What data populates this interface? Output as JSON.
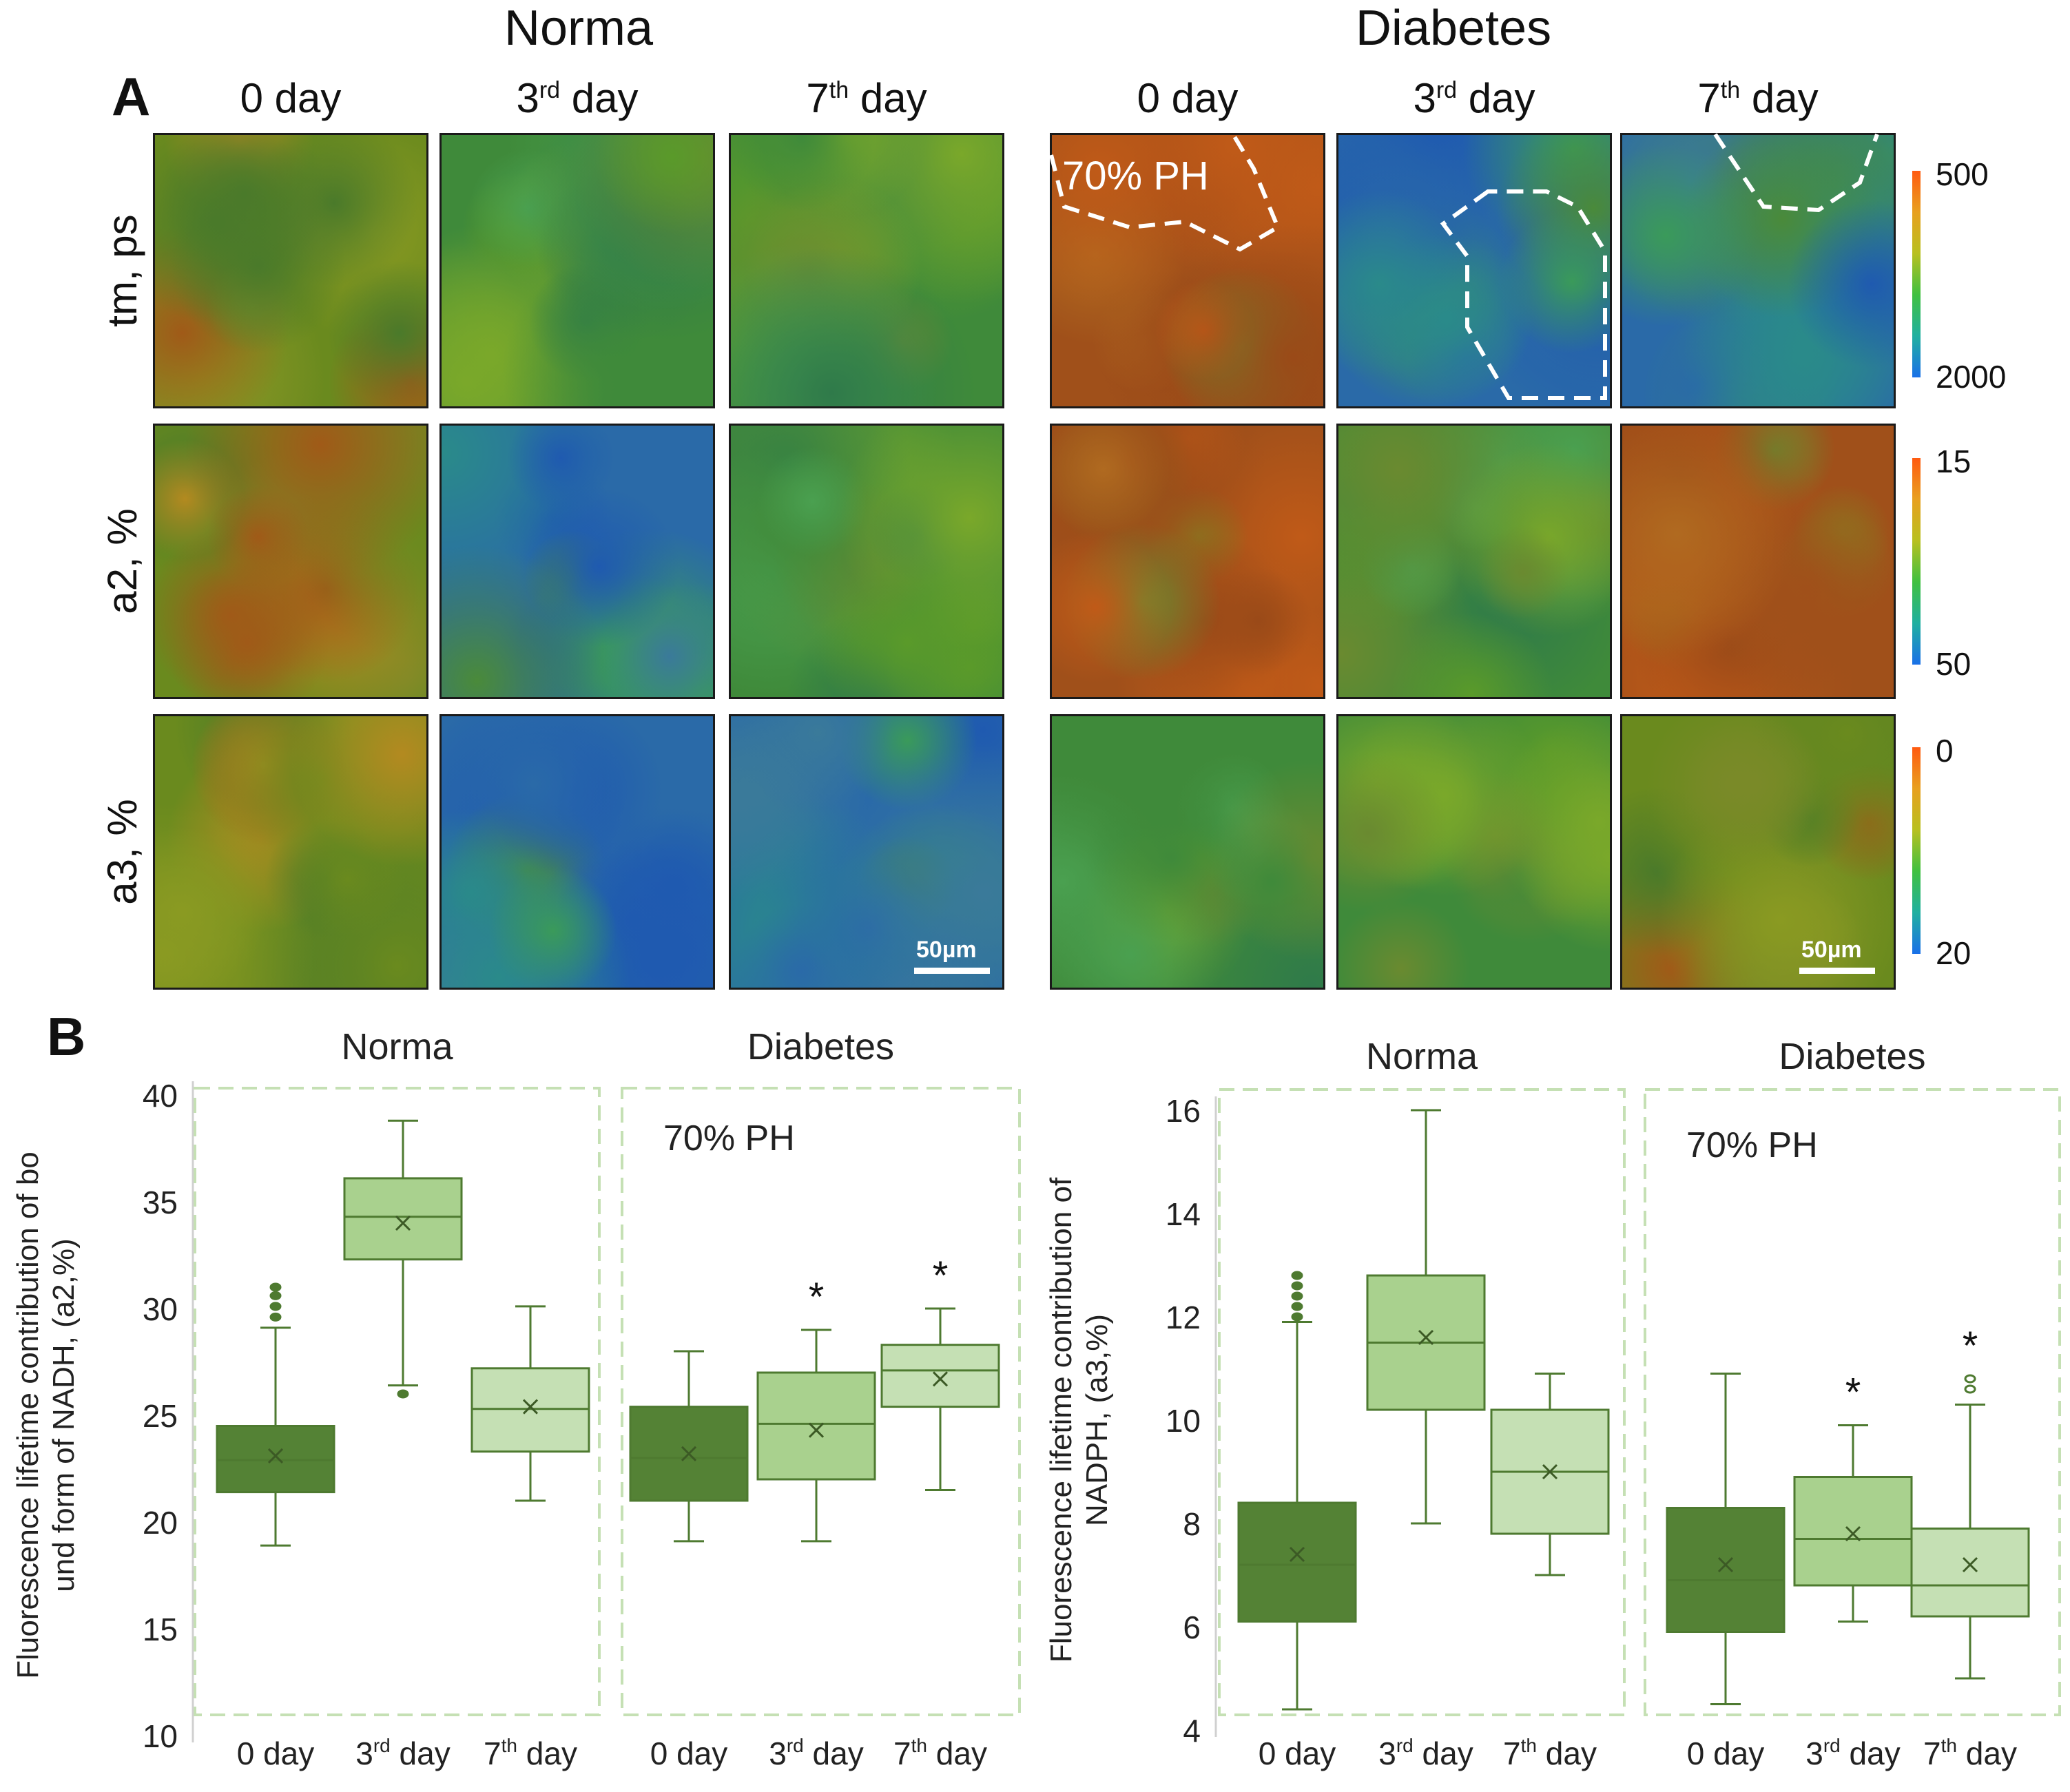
{
  "figure": {
    "panel_a_letter": "A",
    "panel_b_letter": "B",
    "groups": [
      "Norma",
      "Diabetes"
    ],
    "columns": [
      {
        "base": "0 day",
        "sup": "",
        "rest": ""
      },
      {
        "base": "3",
        "sup": "rd",
        "rest": " day"
      },
      {
        "base": "7",
        "sup": "th",
        "rest": " day"
      }
    ],
    "rows": [
      "tm, ps",
      "a2, %",
      "a3, %"
    ],
    "colorbars": [
      {
        "top": "500",
        "bottom": "2000"
      },
      {
        "top": "15",
        "bottom": "50"
      },
      {
        "top": "0",
        "bottom": "20"
      }
    ],
    "roi_label": "70% PH",
    "scale_bar": "50µm",
    "colors": {
      "dark": "#548235",
      "mid": "#a9d18e",
      "light": "#c5e0b4",
      "edge": "#4e7a30",
      "frame": "#c5e0b4"
    }
  },
  "chart_data": [
    {
      "type": "box",
      "title_left": "Norma",
      "title_right": "Diabetes",
      "annotation": "70% PH",
      "ylabel": "Fluorescence lifetime contribution of bound form of NADH, (a2,%)",
      "ylim": [
        10,
        40
      ],
      "yticks": [
        10,
        15,
        20,
        25,
        30,
        35,
        40
      ],
      "groups": [
        {
          "name": "Norma",
          "boxes": [
            {
              "label": "0 day",
              "min": 18.9,
              "q1": 21.4,
              "median": 22.9,
              "q3": 24.5,
              "max": 29.1,
              "mean": 23.1,
              "outliers": [
                29.6,
                30.1,
                30.6,
                31.0
              ],
              "significant": false,
              "shade": "dark"
            },
            {
              "label": "3rd day",
              "min": 26.4,
              "q1": 32.3,
              "median": 34.3,
              "q3": 36.1,
              "max": 38.8,
              "mean": 34.0,
              "outliers": [
                26.0
              ],
              "significant": false,
              "shade": "mid"
            },
            {
              "label": "7th day",
              "min": 21.0,
              "q1": 23.3,
              "median": 25.3,
              "q3": 27.2,
              "max": 30.1,
              "mean": 25.4,
              "outliers": [],
              "significant": false,
              "shade": "light"
            }
          ]
        },
        {
          "name": "Diabetes",
          "boxes": [
            {
              "label": "0 day",
              "min": 19.1,
              "q1": 21.0,
              "median": 23.0,
              "q3": 25.4,
              "max": 28.0,
              "mean": 23.2,
              "outliers": [],
              "significant": false,
              "shade": "dark"
            },
            {
              "label": "3rd day",
              "min": 19.1,
              "q1": 22.0,
              "median": 24.6,
              "q3": 27.0,
              "max": 29.0,
              "mean": 24.3,
              "outliers": [],
              "significant": true,
              "shade": "mid"
            },
            {
              "label": "7th day",
              "min": 21.5,
              "q1": 25.4,
              "median": 27.1,
              "q3": 28.3,
              "max": 30.0,
              "mean": 26.7,
              "outliers": [],
              "significant": true,
              "shade": "light"
            }
          ]
        }
      ]
    },
    {
      "type": "box",
      "title_left": "Norma",
      "title_right": "Diabetes",
      "annotation": "70% PH",
      "ylabel": "Fluorescence lifetime contribution of NADPH, (a3,%)",
      "ylim": [
        4,
        16
      ],
      "yticks": [
        4,
        6,
        8,
        10,
        12,
        14,
        16
      ],
      "groups": [
        {
          "name": "Norma",
          "boxes": [
            {
              "label": "0 day",
              "min": 4.4,
              "q1": 6.1,
              "median": 7.2,
              "q3": 8.4,
              "max": 11.9,
              "mean": 7.4,
              "outliers": [
                12.0,
                12.2,
                12.4,
                12.6,
                12.8
              ],
              "significant": false,
              "shade": "dark"
            },
            {
              "label": "3rd day",
              "min": 8.0,
              "q1": 10.2,
              "median": 11.5,
              "q3": 12.8,
              "max": 16.0,
              "mean": 11.6,
              "outliers": [],
              "significant": false,
              "shade": "mid"
            },
            {
              "label": "7th day",
              "min": 7.0,
              "q1": 7.8,
              "median": 9.0,
              "q3": 10.2,
              "max": 10.9,
              "mean": 9.0,
              "outliers": [],
              "significant": false,
              "shade": "light"
            }
          ]
        },
        {
          "name": "Diabetes",
          "boxes": [
            {
              "label": "0 day",
              "min": 4.5,
              "q1": 5.9,
              "median": 6.9,
              "q3": 8.3,
              "max": 10.9,
              "mean": 7.2,
              "outliers": [],
              "significant": false,
              "shade": "dark"
            },
            {
              "label": "3rd day",
              "min": 6.1,
              "q1": 6.8,
              "median": 7.7,
              "q3": 8.9,
              "max": 9.9,
              "mean": 7.8,
              "outliers": [],
              "significant": true,
              "shade": "mid"
            },
            {
              "label": "7th day",
              "min": 5.0,
              "q1": 6.2,
              "median": 6.8,
              "q3": 7.9,
              "max": 10.3,
              "mean": 7.2,
              "outliers": [
                10.6,
                10.8
              ],
              "significant": true,
              "shade": "light"
            }
          ]
        }
      ]
    }
  ]
}
